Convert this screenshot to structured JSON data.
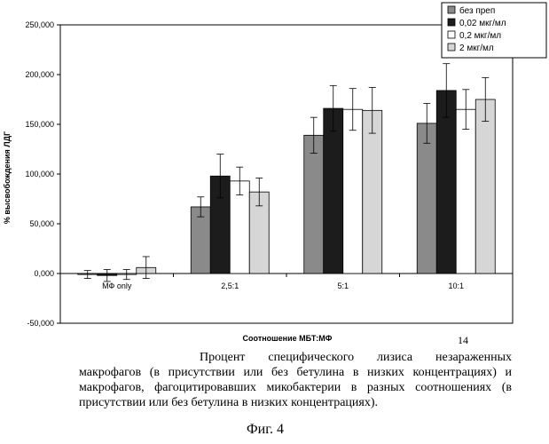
{
  "chart_data": {
    "type": "bar",
    "ylabel": "% высвобождения ЛДГ",
    "xlabel": "Соотношение МБТ:МФ",
    "ylim": [
      -50,
      250
    ],
    "yticks": [
      -50,
      0,
      50,
      100,
      150,
      200,
      250
    ],
    "ytick_labels": [
      "-50,000",
      "0,000",
      "50,000",
      "100,000",
      "150,000",
      "200,000",
      "250,000"
    ],
    "categories": [
      "МФ only",
      "2,5:1",
      "5:1",
      "10:1"
    ],
    "legend_position": "top-right",
    "grid": false,
    "series": [
      {
        "name": "без преп",
        "color": "#8a8a8a",
        "values": [
          -1,
          67,
          139,
          151
        ],
        "errors": [
          4,
          10,
          18,
          20
        ]
      },
      {
        "name": "0,02 мкг/мл",
        "color": "#1c1c1c",
        "values": [
          -2,
          98,
          166,
          184
        ],
        "errors": [
          6,
          22,
          23,
          27
        ]
      },
      {
        "name": "0,2 мкг/мл",
        "color": "#ffffff",
        "values": [
          -1,
          93,
          165,
          165
        ],
        "errors": [
          5,
          14,
          21,
          20
        ]
      },
      {
        "name": "2 мкг/мл",
        "color": "#d6d6d6",
        "values": [
          6,
          82,
          164,
          175
        ],
        "errors": [
          11,
          14,
          23,
          22
        ]
      }
    ]
  },
  "page_number": "14",
  "caption": "Процент специфического лизиса незараженных макрофагов (в присутствии или без бетулина в низких концентрациях) и макрофагов, фагоцитировавших микобактерии в разных соотношениях (в присутствии или без бетулина в низких концентрациях).",
  "figure_label": "Фиг. 4"
}
